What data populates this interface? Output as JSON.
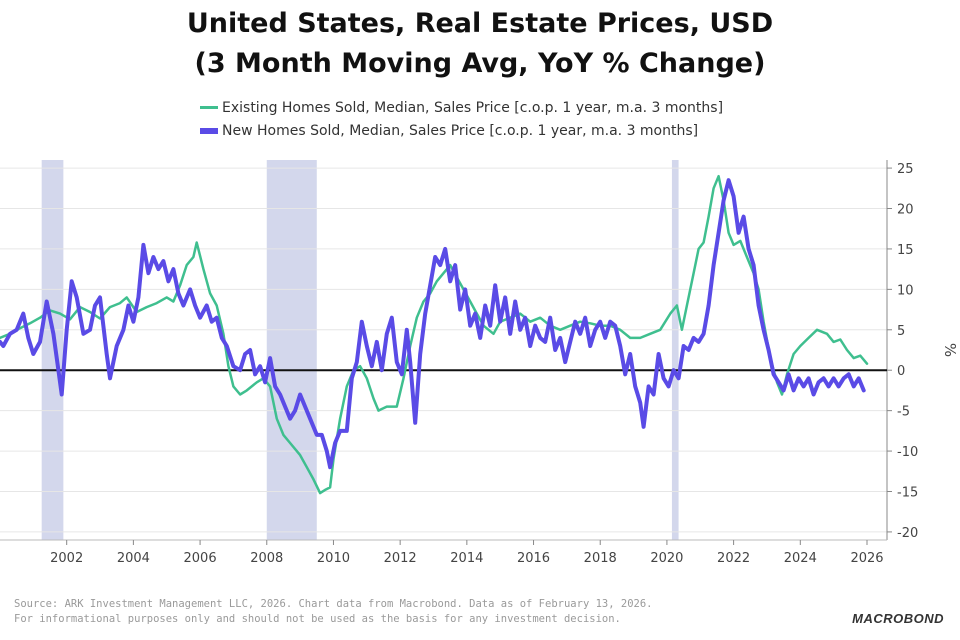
{
  "header": {
    "title_line1": "United States, Real Estate Prices, USD",
    "title_line2": "(3 Month Moving Avg, YoY % Change)"
  },
  "footer": {
    "source": "Source: ARK Investment Management LLC, 2026. Chart data from Macrobond. Data as of February 13, 2026.",
    "disclaimer": "For informational purposes only and should not be used as the basis for any investment decision.",
    "brand": "MACROBOND"
  },
  "colors": {
    "existing": "#3fbf8f",
    "new": "#5a4be6",
    "recession": "#d3d7ec",
    "zero_line": "#111111",
    "grid": "#e6e6e6",
    "tick_text": "#444444"
  },
  "chart_data": {
    "type": "line",
    "title": "United States, Real Estate Prices, USD (3 Month Moving Avg, YoY % Change)",
    "xlabel": "",
    "ylabel": "%",
    "xlim": [
      2000.0,
      2026.6
    ],
    "ylim": [
      -21,
      26
    ],
    "x_ticks": [
      2002,
      2004,
      2006,
      2008,
      2010,
      2012,
      2014,
      2016,
      2018,
      2020,
      2022,
      2024,
      2026
    ],
    "y_ticks": [
      -20,
      -15,
      -10,
      -5,
      0,
      5,
      10,
      15,
      20,
      25
    ],
    "legend_position": "top-left",
    "recessions": [
      [
        2001.25,
        2001.9
      ],
      [
        2008.0,
        2009.5
      ],
      [
        2020.15,
        2020.35
      ]
    ],
    "series": [
      {
        "name": "Existing Homes Sold, Median, Sales Price [c.o.p. 1 year, m.a. 3 months]",
        "style": "thin",
        "points": [
          [
            2000.0,
            4
          ],
          [
            2000.3,
            4.5
          ],
          [
            2000.6,
            5.2
          ],
          [
            2000.9,
            5.8
          ],
          [
            2001.2,
            6.5
          ],
          [
            2001.5,
            7.4
          ],
          [
            2001.8,
            7.0
          ],
          [
            2002.1,
            6.3
          ],
          [
            2002.4,
            7.8
          ],
          [
            2002.7,
            7.2
          ],
          [
            2003.0,
            6.4
          ],
          [
            2003.3,
            7.8
          ],
          [
            2003.6,
            8.3
          ],
          [
            2003.8,
            9.0
          ],
          [
            2004.1,
            7.2
          ],
          [
            2004.4,
            7.8
          ],
          [
            2004.7,
            8.3
          ],
          [
            2005.0,
            9.0
          ],
          [
            2005.2,
            8.5
          ],
          [
            2005.4,
            10.5
          ],
          [
            2005.6,
            13.0
          ],
          [
            2005.8,
            14.0
          ],
          [
            2005.9,
            15.8
          ],
          [
            2006.1,
            12.5
          ],
          [
            2006.3,
            9.5
          ],
          [
            2006.5,
            8.0
          ],
          [
            2006.7,
            4.5
          ],
          [
            2006.85,
            0.5
          ],
          [
            2007.0,
            -2.0
          ],
          [
            2007.2,
            -3.0
          ],
          [
            2007.4,
            -2.5
          ],
          [
            2007.7,
            -1.5
          ],
          [
            2007.9,
            -1.0
          ],
          [
            2008.1,
            -2.0
          ],
          [
            2008.3,
            -6.0
          ],
          [
            2008.5,
            -8.0
          ],
          [
            2008.7,
            -9.0
          ],
          [
            2008.9,
            -10.0
          ],
          [
            2009.0,
            -10.5
          ],
          [
            2009.2,
            -12.0
          ],
          [
            2009.4,
            -13.5
          ],
          [
            2009.6,
            -15.2
          ],
          [
            2009.75,
            -14.8
          ],
          [
            2009.9,
            -14.5
          ],
          [
            2010.0,
            -11.0
          ],
          [
            2010.2,
            -6.0
          ],
          [
            2010.4,
            -2.0
          ],
          [
            2010.6,
            0.0
          ],
          [
            2010.8,
            0.5
          ],
          [
            2011.0,
            -1.0
          ],
          [
            2011.2,
            -3.5
          ],
          [
            2011.35,
            -5.0
          ],
          [
            2011.6,
            -4.5
          ],
          [
            2011.9,
            -4.5
          ],
          [
            2012.1,
            -1.0
          ],
          [
            2012.3,
            3.0
          ],
          [
            2012.5,
            6.5
          ],
          [
            2012.7,
            8.5
          ],
          [
            2012.9,
            9.5
          ],
          [
            2013.1,
            11.0
          ],
          [
            2013.3,
            12.0
          ],
          [
            2013.5,
            13.0
          ],
          [
            2013.7,
            11.5
          ],
          [
            2013.9,
            10.0
          ],
          [
            2014.1,
            8.5
          ],
          [
            2014.3,
            7.0
          ],
          [
            2014.5,
            5.5
          ],
          [
            2014.8,
            4.5
          ],
          [
            2015.0,
            6.0
          ],
          [
            2015.3,
            6.5
          ],
          [
            2015.6,
            7.0
          ],
          [
            2015.9,
            6.0
          ],
          [
            2016.2,
            6.5
          ],
          [
            2016.5,
            5.5
          ],
          [
            2016.8,
            5.0
          ],
          [
            2017.1,
            5.5
          ],
          [
            2017.4,
            6.0
          ],
          [
            2017.7,
            5.8
          ],
          [
            2018.0,
            5.5
          ],
          [
            2018.3,
            5.5
          ],
          [
            2018.6,
            5.0
          ],
          [
            2018.9,
            4.0
          ],
          [
            2019.2,
            4.0
          ],
          [
            2019.5,
            4.5
          ],
          [
            2019.8,
            5.0
          ],
          [
            2020.1,
            7.0
          ],
          [
            2020.3,
            8.0
          ],
          [
            2020.45,
            5.0
          ],
          [
            2020.6,
            8.0
          ],
          [
            2020.8,
            12.0
          ],
          [
            2020.95,
            15.0
          ],
          [
            2021.1,
            15.8
          ],
          [
            2021.25,
            19.0
          ],
          [
            2021.4,
            22.5
          ],
          [
            2021.55,
            24.0
          ],
          [
            2021.7,
            21.0
          ],
          [
            2021.85,
            17.0
          ],
          [
            2022.0,
            15.5
          ],
          [
            2022.2,
            16.0
          ],
          [
            2022.4,
            14.0
          ],
          [
            2022.6,
            12.0
          ],
          [
            2022.75,
            10.0
          ],
          [
            2022.9,
            6.0
          ],
          [
            2023.1,
            1.5
          ],
          [
            2023.3,
            -1.5
          ],
          [
            2023.45,
            -3.0
          ],
          [
            2023.6,
            -0.5
          ],
          [
            2023.8,
            2.0
          ],
          [
            2024.0,
            3.0
          ],
          [
            2024.25,
            4.0
          ],
          [
            2024.5,
            5.0
          ],
          [
            2024.8,
            4.5
          ],
          [
            2025.0,
            3.5
          ],
          [
            2025.2,
            3.8
          ],
          [
            2025.4,
            2.5
          ],
          [
            2025.6,
            1.5
          ],
          [
            2025.8,
            1.8
          ],
          [
            2026.0,
            0.8
          ]
        ]
      },
      {
        "name": "New Homes Sold, Median, Sales Price [c.o.p. 1 year, m.a. 3 months]",
        "style": "thick",
        "points": [
          [
            2000.0,
            3.5
          ],
          [
            2000.1,
            3
          ],
          [
            2000.3,
            4.5
          ],
          [
            2000.5,
            5
          ],
          [
            2000.7,
            7
          ],
          [
            2000.85,
            4
          ],
          [
            2001.0,
            2
          ],
          [
            2001.2,
            3.5
          ],
          [
            2001.4,
            8.5
          ],
          [
            2001.6,
            4.5
          ],
          [
            2001.75,
            0
          ],
          [
            2001.85,
            -3
          ],
          [
            2002.0,
            5
          ],
          [
            2002.15,
            11
          ],
          [
            2002.3,
            9
          ],
          [
            2002.5,
            4.5
          ],
          [
            2002.7,
            5
          ],
          [
            2002.85,
            8
          ],
          [
            2003.0,
            9
          ],
          [
            2003.2,
            2
          ],
          [
            2003.3,
            -1
          ],
          [
            2003.5,
            3
          ],
          [
            2003.7,
            5
          ],
          [
            2003.85,
            8
          ],
          [
            2004.0,
            6
          ],
          [
            2004.15,
            9
          ],
          [
            2004.3,
            15.5
          ],
          [
            2004.45,
            12
          ],
          [
            2004.6,
            14
          ],
          [
            2004.75,
            12.5
          ],
          [
            2004.9,
            13.5
          ],
          [
            2005.05,
            11
          ],
          [
            2005.2,
            12.5
          ],
          [
            2005.35,
            9.5
          ],
          [
            2005.5,
            8
          ],
          [
            2005.7,
            10
          ],
          [
            2005.85,
            8
          ],
          [
            2006.0,
            6.5
          ],
          [
            2006.2,
            8
          ],
          [
            2006.35,
            6
          ],
          [
            2006.5,
            6.5
          ],
          [
            2006.65,
            4
          ],
          [
            2006.8,
            3
          ],
          [
            2007.0,
            0.5
          ],
          [
            2007.2,
            0
          ],
          [
            2007.35,
            2
          ],
          [
            2007.5,
            2.5
          ],
          [
            2007.65,
            -0.5
          ],
          [
            2007.8,
            0.5
          ],
          [
            2007.95,
            -1.5
          ],
          [
            2008.1,
            1.5
          ],
          [
            2008.25,
            -2
          ],
          [
            2008.4,
            -3
          ],
          [
            2008.55,
            -4.5
          ],
          [
            2008.7,
            -6
          ],
          [
            2008.85,
            -5
          ],
          [
            2009.0,
            -3
          ],
          [
            2009.15,
            -4.5
          ],
          [
            2009.3,
            -6
          ],
          [
            2009.5,
            -8
          ],
          [
            2009.65,
            -8
          ],
          [
            2009.8,
            -10
          ],
          [
            2009.9,
            -12
          ],
          [
            2010.05,
            -9
          ],
          [
            2010.2,
            -7.5
          ],
          [
            2010.4,
            -7.5
          ],
          [
            2010.55,
            -1
          ],
          [
            2010.7,
            1
          ],
          [
            2010.85,
            6
          ],
          [
            2011.0,
            3
          ],
          [
            2011.15,
            0.5
          ],
          [
            2011.3,
            3.5
          ],
          [
            2011.45,
            0
          ],
          [
            2011.6,
            4.5
          ],
          [
            2011.75,
            6.5
          ],
          [
            2011.9,
            1
          ],
          [
            2012.05,
            -0.5
          ],
          [
            2012.2,
            5
          ],
          [
            2012.3,
            1
          ],
          [
            2012.45,
            -6.5
          ],
          [
            2012.6,
            2
          ],
          [
            2012.75,
            7
          ],
          [
            2012.9,
            10.5
          ],
          [
            2013.05,
            14
          ],
          [
            2013.2,
            13
          ],
          [
            2013.35,
            15
          ],
          [
            2013.5,
            11
          ],
          [
            2013.65,
            13
          ],
          [
            2013.8,
            7.5
          ],
          [
            2013.95,
            10
          ],
          [
            2014.1,
            5.5
          ],
          [
            2014.25,
            7
          ],
          [
            2014.4,
            4
          ],
          [
            2014.55,
            8
          ],
          [
            2014.7,
            5.5
          ],
          [
            2014.85,
            10.5
          ],
          [
            2015.0,
            6
          ],
          [
            2015.15,
            9
          ],
          [
            2015.3,
            4.5
          ],
          [
            2015.45,
            8.5
          ],
          [
            2015.6,
            5
          ],
          [
            2015.75,
            6.5
          ],
          [
            2015.9,
            3
          ],
          [
            2016.05,
            5.5
          ],
          [
            2016.2,
            4
          ],
          [
            2016.35,
            3.5
          ],
          [
            2016.5,
            6.5
          ],
          [
            2016.65,
            2.5
          ],
          [
            2016.8,
            4
          ],
          [
            2016.95,
            1
          ],
          [
            2017.1,
            3.5
          ],
          [
            2017.25,
            6
          ],
          [
            2017.4,
            4.5
          ],
          [
            2017.55,
            6.5
          ],
          [
            2017.7,
            3
          ],
          [
            2017.85,
            5
          ],
          [
            2018.0,
            6
          ],
          [
            2018.15,
            4
          ],
          [
            2018.3,
            6
          ],
          [
            2018.45,
            5.5
          ],
          [
            2018.6,
            3
          ],
          [
            2018.75,
            -0.5
          ],
          [
            2018.9,
            2
          ],
          [
            2019.05,
            -2
          ],
          [
            2019.2,
            -4
          ],
          [
            2019.3,
            -7
          ],
          [
            2019.45,
            -2
          ],
          [
            2019.6,
            -3
          ],
          [
            2019.75,
            2
          ],
          [
            2019.9,
            -1
          ],
          [
            2020.05,
            -2
          ],
          [
            2020.2,
            0
          ],
          [
            2020.35,
            -1
          ],
          [
            2020.5,
            3
          ],
          [
            2020.65,
            2.5
          ],
          [
            2020.8,
            4
          ],
          [
            2020.95,
            3.5
          ],
          [
            2021.1,
            4.5
          ],
          [
            2021.25,
            8
          ],
          [
            2021.4,
            13
          ],
          [
            2021.55,
            17
          ],
          [
            2021.7,
            21
          ],
          [
            2021.85,
            23.5
          ],
          [
            2022.0,
            21.5
          ],
          [
            2022.15,
            17
          ],
          [
            2022.3,
            19
          ],
          [
            2022.45,
            15
          ],
          [
            2022.6,
            13
          ],
          [
            2022.75,
            8
          ],
          [
            2022.9,
            5
          ],
          [
            2023.05,
            2.5
          ],
          [
            2023.2,
            -0.5
          ],
          [
            2023.35,
            -1.5
          ],
          [
            2023.5,
            -2.5
          ],
          [
            2023.65,
            -0.5
          ],
          [
            2023.8,
            -2.5
          ],
          [
            2023.95,
            -1
          ],
          [
            2024.1,
            -2
          ],
          [
            2024.25,
            -1
          ],
          [
            2024.4,
            -3
          ],
          [
            2024.55,
            -1.5
          ],
          [
            2024.7,
            -1
          ],
          [
            2024.85,
            -2
          ],
          [
            2025.0,
            -1
          ],
          [
            2025.15,
            -2
          ],
          [
            2025.3,
            -1
          ],
          [
            2025.45,
            -0.5
          ],
          [
            2025.6,
            -2
          ],
          [
            2025.75,
            -1
          ],
          [
            2025.9,
            -2.5
          ]
        ]
      }
    ]
  }
}
